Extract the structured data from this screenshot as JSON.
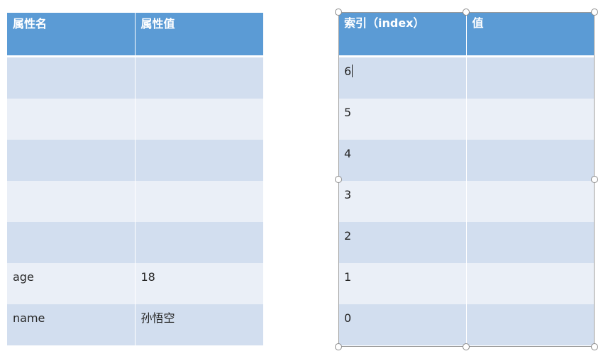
{
  "left_table": {
    "headers": [
      "属性名",
      "属性值"
    ],
    "rows": [
      [
        "",
        ""
      ],
      [
        "",
        ""
      ],
      [
        "",
        ""
      ],
      [
        "",
        ""
      ],
      [
        "",
        ""
      ],
      [
        "age",
        "18"
      ],
      [
        "name",
        "孙悟空"
      ]
    ]
  },
  "right_table": {
    "headers": [
      "索引（index）",
      "值"
    ],
    "rows": [
      [
        "6",
        ""
      ],
      [
        "5",
        ""
      ],
      [
        "4",
        ""
      ],
      [
        "3",
        ""
      ],
      [
        "2",
        ""
      ],
      [
        "1",
        ""
      ],
      [
        "0",
        ""
      ]
    ]
  },
  "colors": {
    "header": "#5b9bd5",
    "band_dark": "#d2deef",
    "band_light": "#eaeff7"
  }
}
